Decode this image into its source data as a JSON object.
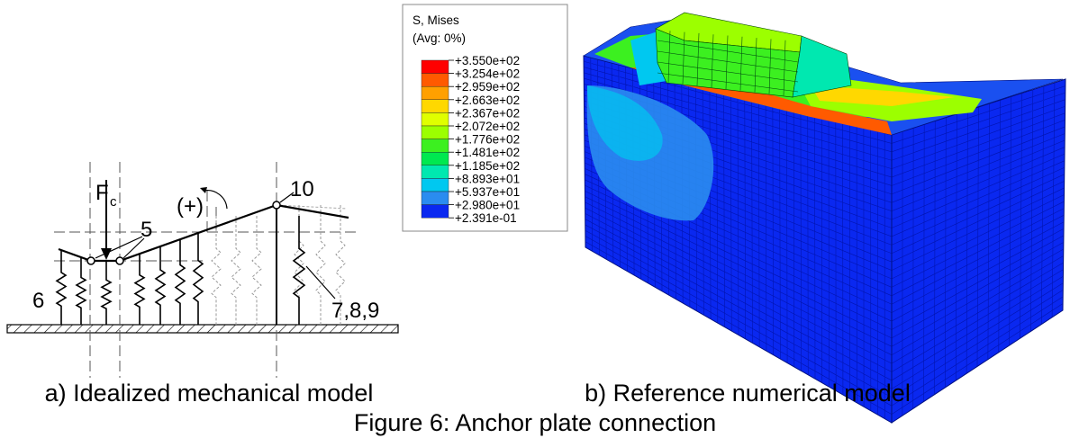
{
  "figure": {
    "panel_a": {
      "labels": {
        "force": "F",
        "force_subscript": "c",
        "moment": "(+)",
        "node_5": "5",
        "node_10": "10",
        "spring_6": "6",
        "springs_7_8_9": "7,8,9"
      },
      "caption": "a) Idealized mechanical model"
    },
    "panel_b": {
      "legend": {
        "title": "S, Mises",
        "subtitle": "(Avg: 0%)",
        "values": [
          "+3.550e+02",
          "+3.254e+02",
          "+2.959e+02",
          "+2.663e+02",
          "+2.367e+02",
          "+2.072e+02",
          "+1.776e+02",
          "+1.481e+02",
          "+1.185e+02",
          "+8.893e+01",
          "+5.937e+01",
          "+2.980e+01",
          "+2.391e-01"
        ],
        "colors": [
          "#ff0000",
          "#ff5a00",
          "#ffa000",
          "#ffd800",
          "#e0ff00",
          "#9cff00",
          "#3cf020",
          "#00e850",
          "#00e8b0",
          "#00c8f0",
          "#2a8cf0",
          "#0a28f0"
        ]
      },
      "caption": "b) Reference numerical model"
    },
    "caption": "Figure 6: Anchor plate connection"
  }
}
